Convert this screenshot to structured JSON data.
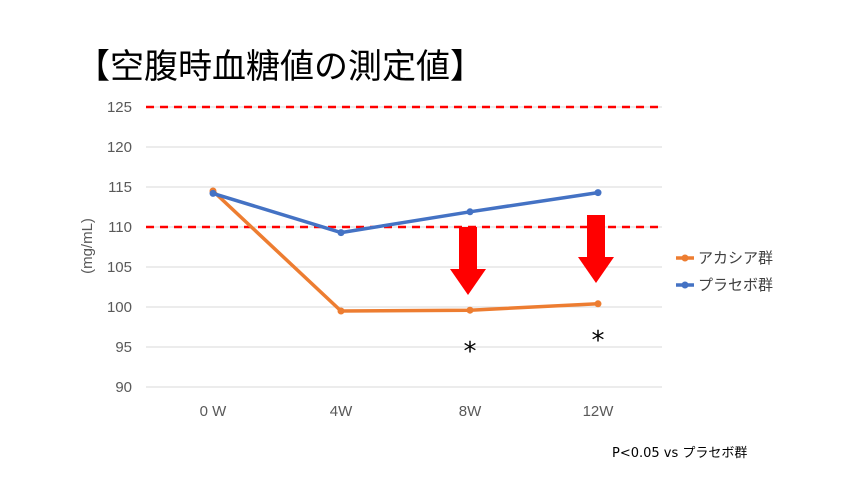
{
  "chart_data": {
    "type": "line",
    "title": "【空腹時血糖値の測定値】",
    "ylabel": "(mg/mL)",
    "xlabel": "",
    "categories": [
      "0 W",
      "4W",
      "8W",
      "12W"
    ],
    "ylim": [
      90,
      125
    ],
    "yticks": [
      90,
      95,
      100,
      105,
      110,
      115,
      120,
      125
    ],
    "grid": true,
    "legend_position": "right",
    "series": [
      {
        "name": "アカシア群",
        "values": [
          114.5,
          99.5,
          99.6,
          100.4
        ],
        "color": "#ED7D31"
      },
      {
        "name": "プラセボ群",
        "values": [
          114.2,
          109.3,
          111.9,
          114.3
        ],
        "color": "#4472C4"
      }
    ],
    "reference_lines": [
      {
        "value": 125,
        "color": "#FF0000",
        "style": "dashed"
      },
      {
        "value": 110,
        "color": "#FF0000",
        "style": "dashed"
      }
    ],
    "annotations": {
      "arrows": [
        {
          "category": "8W"
        },
        {
          "category": "12W"
        }
      ],
      "significance_marks": [
        {
          "category": "8W",
          "text": "*"
        },
        {
          "category": "12W",
          "text": "*"
        }
      ],
      "arrow_color": "#FF0000"
    },
    "footnote": "P<0.05 vs プラセボ群"
  }
}
